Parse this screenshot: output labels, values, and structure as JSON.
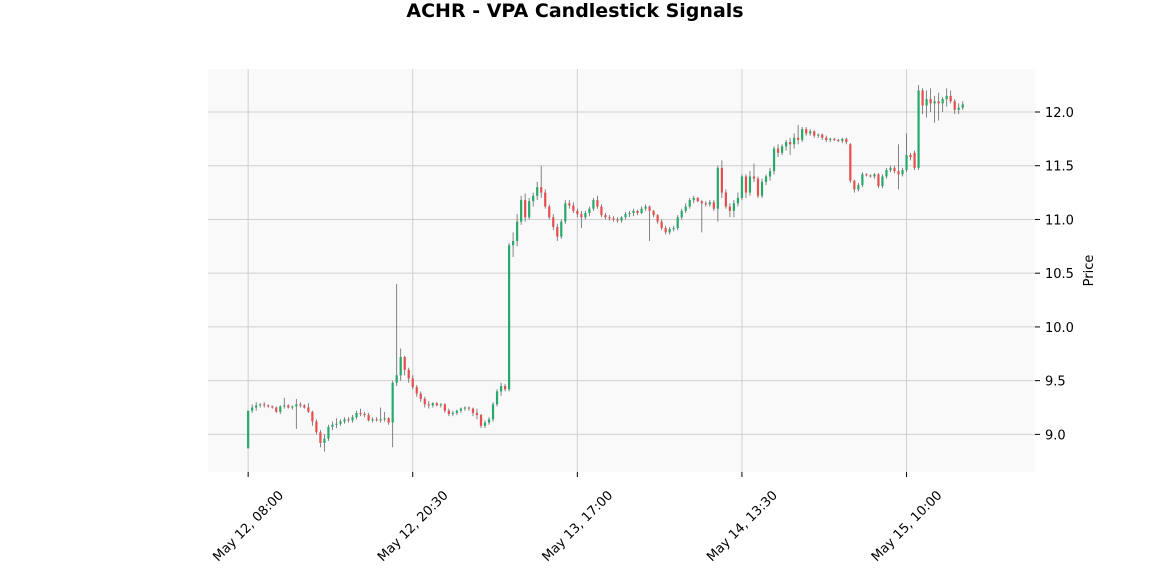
{
  "chart_data": {
    "type": "candlestick",
    "title": "ACHR - VPA Candlestick Signals",
    "ylabel": "Price",
    "xlabel": "",
    "ylim": [
      8.65,
      12.4
    ],
    "yticks": [
      9.0,
      9.5,
      10.0,
      10.5,
      11.0,
      11.5,
      12.0
    ],
    "ytick_labels": [
      "9.0",
      "9.5",
      "10.0",
      "10.5",
      "11.0",
      "11.5",
      "12.0"
    ],
    "xrange": [
      -10,
      196
    ],
    "xticks": [
      0,
      41,
      82,
      123,
      164
    ],
    "xtick_labels": [
      "May 12, 08:00",
      "May 12, 20:30",
      "May 13, 17:00",
      "May 14, 13:30",
      "May 15, 10:00"
    ],
    "grid": true,
    "colors": {
      "up": "#26a96c",
      "down": "#e84e4e",
      "wick": "#666666",
      "grid": "#d0d0d0",
      "plot_bg": "#f9f9f9"
    },
    "candles": [
      {
        "o": 8.87,
        "h": 9.22,
        "l": 8.87,
        "c": 9.22
      },
      {
        "o": 9.22,
        "h": 9.28,
        "l": 9.2,
        "c": 9.25
      },
      {
        "o": 9.25,
        "h": 9.3,
        "l": 9.22,
        "c": 9.27
      },
      {
        "o": 9.27,
        "h": 9.29,
        "l": 9.25,
        "c": 9.28
      },
      {
        "o": 9.28,
        "h": 9.3,
        "l": 9.25,
        "c": 9.27
      },
      {
        "o": 9.27,
        "h": 9.28,
        "l": 9.25,
        "c": 9.26
      },
      {
        "o": 9.26,
        "h": 9.27,
        "l": 9.24,
        "c": 9.25
      },
      {
        "o": 9.25,
        "h": 9.26,
        "l": 9.2,
        "c": 9.21
      },
      {
        "o": 9.21,
        "h": 9.27,
        "l": 9.19,
        "c": 9.26
      },
      {
        "o": 9.26,
        "h": 9.34,
        "l": 9.24,
        "c": 9.27
      },
      {
        "o": 9.27,
        "h": 9.28,
        "l": 9.24,
        "c": 9.25
      },
      {
        "o": 9.25,
        "h": 9.27,
        "l": 9.23,
        "c": 9.26
      },
      {
        "o": 9.26,
        "h": 9.33,
        "l": 9.05,
        "c": 9.28
      },
      {
        "o": 9.28,
        "h": 9.3,
        "l": 9.25,
        "c": 9.27
      },
      {
        "o": 9.27,
        "h": 9.28,
        "l": 9.24,
        "c": 9.25
      },
      {
        "o": 9.25,
        "h": 9.29,
        "l": 9.2,
        "c": 9.21
      },
      {
        "o": 9.21,
        "h": 9.22,
        "l": 9.08,
        "c": 9.12
      },
      {
        "o": 9.12,
        "h": 9.14,
        "l": 9.0,
        "c": 9.02
      },
      {
        "o": 9.02,
        "h": 9.04,
        "l": 8.88,
        "c": 8.92
      },
      {
        "o": 8.92,
        "h": 9.0,
        "l": 8.84,
        "c": 8.96
      },
      {
        "o": 8.96,
        "h": 9.09,
        "l": 8.94,
        "c": 9.07
      },
      {
        "o": 9.07,
        "h": 9.12,
        "l": 9.04,
        "c": 9.09
      },
      {
        "o": 9.09,
        "h": 9.15,
        "l": 9.06,
        "c": 9.1
      },
      {
        "o": 9.1,
        "h": 9.14,
        "l": 9.08,
        "c": 9.12
      },
      {
        "o": 9.12,
        "h": 9.16,
        "l": 9.1,
        "c": 9.14
      },
      {
        "o": 9.14,
        "h": 9.16,
        "l": 9.11,
        "c": 9.13
      },
      {
        "o": 9.13,
        "h": 9.18,
        "l": 9.11,
        "c": 9.16
      },
      {
        "o": 9.16,
        "h": 9.22,
        "l": 9.14,
        "c": 9.2
      },
      {
        "o": 9.2,
        "h": 9.24,
        "l": 9.17,
        "c": 9.19
      },
      {
        "o": 9.19,
        "h": 9.21,
        "l": 9.16,
        "c": 9.18
      },
      {
        "o": 9.18,
        "h": 9.2,
        "l": 9.12,
        "c": 9.13
      },
      {
        "o": 9.13,
        "h": 9.16,
        "l": 9.11,
        "c": 9.14
      },
      {
        "o": 9.14,
        "h": 9.16,
        "l": 9.12,
        "c": 9.13
      },
      {
        "o": 9.13,
        "h": 9.25,
        "l": 9.11,
        "c": 9.14
      },
      {
        "o": 9.14,
        "h": 9.21,
        "l": 9.12,
        "c": 9.15
      },
      {
        "o": 9.15,
        "h": 9.16,
        "l": 9.09,
        "c": 9.11
      },
      {
        "o": 9.11,
        "h": 9.5,
        "l": 8.88,
        "c": 9.48
      },
      {
        "o": 9.48,
        "h": 10.4,
        "l": 9.45,
        "c": 9.55
      },
      {
        "o": 9.55,
        "h": 9.8,
        "l": 9.5,
        "c": 9.72
      },
      {
        "o": 9.72,
        "h": 9.73,
        "l": 9.55,
        "c": 9.6
      },
      {
        "o": 9.6,
        "h": 9.62,
        "l": 9.48,
        "c": 9.52
      },
      {
        "o": 9.52,
        "h": 9.55,
        "l": 9.42,
        "c": 9.44
      },
      {
        "o": 9.44,
        "h": 9.46,
        "l": 9.35,
        "c": 9.38
      },
      {
        "o": 9.38,
        "h": 9.4,
        "l": 9.3,
        "c": 9.33
      },
      {
        "o": 9.33,
        "h": 9.35,
        "l": 9.25,
        "c": 9.28
      },
      {
        "o": 9.28,
        "h": 9.31,
        "l": 9.24,
        "c": 9.27
      },
      {
        "o": 9.27,
        "h": 9.3,
        "l": 9.25,
        "c": 9.29
      },
      {
        "o": 9.29,
        "h": 9.3,
        "l": 9.26,
        "c": 9.27
      },
      {
        "o": 9.27,
        "h": 9.29,
        "l": 9.25,
        "c": 9.28
      },
      {
        "o": 9.28,
        "h": 9.29,
        "l": 9.2,
        "c": 9.22
      },
      {
        "o": 9.22,
        "h": 9.24,
        "l": 9.17,
        "c": 9.19
      },
      {
        "o": 9.19,
        "h": 9.22,
        "l": 9.17,
        "c": 9.2
      },
      {
        "o": 9.2,
        "h": 9.23,
        "l": 9.18,
        "c": 9.22
      },
      {
        "o": 9.22,
        "h": 9.25,
        "l": 9.2,
        "c": 9.24
      },
      {
        "o": 9.24,
        "h": 9.26,
        "l": 9.22,
        "c": 9.25
      },
      {
        "o": 9.25,
        "h": 9.26,
        "l": 9.22,
        "c": 9.24
      },
      {
        "o": 9.24,
        "h": 9.25,
        "l": 9.17,
        "c": 9.2
      },
      {
        "o": 9.2,
        "h": 9.24,
        "l": 9.14,
        "c": 9.18
      },
      {
        "o": 9.18,
        "h": 9.19,
        "l": 9.06,
        "c": 9.08
      },
      {
        "o": 9.08,
        "h": 9.13,
        "l": 9.06,
        "c": 9.11
      },
      {
        "o": 9.11,
        "h": 9.16,
        "l": 9.09,
        "c": 9.14
      },
      {
        "o": 9.14,
        "h": 9.3,
        "l": 9.12,
        "c": 9.28
      },
      {
        "o": 9.28,
        "h": 9.42,
        "l": 9.26,
        "c": 9.4
      },
      {
        "o": 9.4,
        "h": 9.48,
        "l": 9.36,
        "c": 9.45
      },
      {
        "o": 9.45,
        "h": 9.47,
        "l": 9.4,
        "c": 9.42
      },
      {
        "o": 9.42,
        "h": 10.78,
        "l": 9.4,
        "c": 10.76
      },
      {
        "o": 10.76,
        "h": 10.88,
        "l": 10.65,
        "c": 10.8
      },
      {
        "o": 10.8,
        "h": 11.05,
        "l": 10.75,
        "c": 10.98
      },
      {
        "o": 10.98,
        "h": 11.22,
        "l": 10.95,
        "c": 11.18
      },
      {
        "o": 11.18,
        "h": 11.24,
        "l": 10.98,
        "c": 11.02
      },
      {
        "o": 11.02,
        "h": 11.2,
        "l": 11.0,
        "c": 11.17
      },
      {
        "o": 11.17,
        "h": 11.25,
        "l": 11.12,
        "c": 11.22
      },
      {
        "o": 11.22,
        "h": 11.35,
        "l": 11.18,
        "c": 11.3
      },
      {
        "o": 11.3,
        "h": 11.5,
        "l": 11.2,
        "c": 11.25
      },
      {
        "o": 11.25,
        "h": 11.28,
        "l": 11.1,
        "c": 11.12
      },
      {
        "o": 11.12,
        "h": 11.14,
        "l": 11.0,
        "c": 11.02
      },
      {
        "o": 11.02,
        "h": 11.05,
        "l": 10.9,
        "c": 10.93
      },
      {
        "o": 10.93,
        "h": 10.96,
        "l": 10.8,
        "c": 10.84
      },
      {
        "o": 10.84,
        "h": 11.0,
        "l": 10.82,
        "c": 10.98
      },
      {
        "o": 10.98,
        "h": 11.18,
        "l": 10.96,
        "c": 11.15
      },
      {
        "o": 11.15,
        "h": 11.18,
        "l": 11.1,
        "c": 11.13
      },
      {
        "o": 11.13,
        "h": 11.16,
        "l": 11.06,
        "c": 11.08
      },
      {
        "o": 11.08,
        "h": 11.1,
        "l": 11.02,
        "c": 11.05
      },
      {
        "o": 11.05,
        "h": 11.08,
        "l": 10.92,
        "c": 11.02
      },
      {
        "o": 11.02,
        "h": 11.08,
        "l": 11.0,
        "c": 11.06
      },
      {
        "o": 11.06,
        "h": 11.12,
        "l": 11.03,
        "c": 11.1
      },
      {
        "o": 11.1,
        "h": 11.2,
        "l": 11.08,
        "c": 11.18
      },
      {
        "o": 11.18,
        "h": 11.22,
        "l": 11.1,
        "c": 11.12
      },
      {
        "o": 11.12,
        "h": 11.14,
        "l": 11.02,
        "c": 11.04
      },
      {
        "o": 11.04,
        "h": 11.06,
        "l": 11.0,
        "c": 11.02
      },
      {
        "o": 11.02,
        "h": 11.04,
        "l": 10.99,
        "c": 11.01
      },
      {
        "o": 11.01,
        "h": 11.03,
        "l": 10.98,
        "c": 11.0
      },
      {
        "o": 11.0,
        "h": 11.02,
        "l": 10.97,
        "c": 10.99
      },
      {
        "o": 10.99,
        "h": 11.03,
        "l": 10.97,
        "c": 11.02
      },
      {
        "o": 11.02,
        "h": 11.07,
        "l": 11.0,
        "c": 11.05
      },
      {
        "o": 11.05,
        "h": 11.08,
        "l": 11.02,
        "c": 11.06
      },
      {
        "o": 11.06,
        "h": 11.1,
        "l": 11.03,
        "c": 11.08
      },
      {
        "o": 11.08,
        "h": 11.09,
        "l": 11.04,
        "c": 11.06
      },
      {
        "o": 11.06,
        "h": 11.12,
        "l": 11.05,
        "c": 11.1
      },
      {
        "o": 11.1,
        "h": 11.14,
        "l": 11.08,
        "c": 11.12
      },
      {
        "o": 11.12,
        "h": 11.13,
        "l": 10.8,
        "c": 11.08
      },
      {
        "o": 11.08,
        "h": 11.09,
        "l": 11.02,
        "c": 11.04
      },
      {
        "o": 11.04,
        "h": 11.05,
        "l": 10.96,
        "c": 10.98
      },
      {
        "o": 10.98,
        "h": 11.0,
        "l": 10.9,
        "c": 10.92
      },
      {
        "o": 10.92,
        "h": 10.94,
        "l": 10.86,
        "c": 10.88
      },
      {
        "o": 10.88,
        "h": 10.93,
        "l": 10.86,
        "c": 10.91
      },
      {
        "o": 10.91,
        "h": 10.94,
        "l": 10.89,
        "c": 10.92
      },
      {
        "o": 10.92,
        "h": 11.04,
        "l": 10.9,
        "c": 11.02
      },
      {
        "o": 11.02,
        "h": 11.1,
        "l": 11.0,
        "c": 11.08
      },
      {
        "o": 11.08,
        "h": 11.15,
        "l": 11.06,
        "c": 11.12
      },
      {
        "o": 11.12,
        "h": 11.2,
        "l": 11.1,
        "c": 11.18
      },
      {
        "o": 11.18,
        "h": 11.22,
        "l": 11.15,
        "c": 11.2
      },
      {
        "o": 11.2,
        "h": 11.21,
        "l": 11.16,
        "c": 11.17
      },
      {
        "o": 11.17,
        "h": 11.18,
        "l": 10.88,
        "c": 11.15
      },
      {
        "o": 11.15,
        "h": 11.17,
        "l": 11.12,
        "c": 11.14
      },
      {
        "o": 11.14,
        "h": 11.18,
        "l": 11.12,
        "c": 11.16
      },
      {
        "o": 11.16,
        "h": 11.18,
        "l": 11.08,
        "c": 11.1
      },
      {
        "o": 11.1,
        "h": 11.5,
        "l": 10.98,
        "c": 11.48
      },
      {
        "o": 11.48,
        "h": 11.55,
        "l": 11.2,
        "c": 11.25
      },
      {
        "o": 11.25,
        "h": 11.28,
        "l": 11.1,
        "c": 11.12
      },
      {
        "o": 11.12,
        "h": 11.15,
        "l": 11.02,
        "c": 11.08
      },
      {
        "o": 11.08,
        "h": 11.18,
        "l": 11.02,
        "c": 11.15
      },
      {
        "o": 11.15,
        "h": 11.25,
        "l": 11.12,
        "c": 11.2
      },
      {
        "o": 11.2,
        "h": 11.42,
        "l": 11.18,
        "c": 11.4
      },
      {
        "o": 11.4,
        "h": 11.42,
        "l": 11.2,
        "c": 11.25
      },
      {
        "o": 11.25,
        "h": 11.45,
        "l": 11.22,
        "c": 11.4
      },
      {
        "o": 11.4,
        "h": 11.52,
        "l": 11.35,
        "c": 11.38
      },
      {
        "o": 11.38,
        "h": 11.4,
        "l": 11.2,
        "c": 11.22
      },
      {
        "o": 11.22,
        "h": 11.38,
        "l": 11.2,
        "c": 11.35
      },
      {
        "o": 11.35,
        "h": 11.42,
        "l": 11.32,
        "c": 11.4
      },
      {
        "o": 11.4,
        "h": 11.48,
        "l": 11.36,
        "c": 11.45
      },
      {
        "o": 11.45,
        "h": 11.68,
        "l": 11.42,
        "c": 11.66
      },
      {
        "o": 11.66,
        "h": 11.7,
        "l": 11.58,
        "c": 11.62
      },
      {
        "o": 11.62,
        "h": 11.7,
        "l": 11.6,
        "c": 11.68
      },
      {
        "o": 11.68,
        "h": 11.74,
        "l": 11.64,
        "c": 11.72
      },
      {
        "o": 11.72,
        "h": 11.76,
        "l": 11.6,
        "c": 11.7
      },
      {
        "o": 11.7,
        "h": 11.8,
        "l": 11.66,
        "c": 11.76
      },
      {
        "o": 11.76,
        "h": 11.88,
        "l": 11.7,
        "c": 11.74
      },
      {
        "o": 11.74,
        "h": 11.86,
        "l": 11.72,
        "c": 11.84
      },
      {
        "o": 11.84,
        "h": 11.86,
        "l": 11.78,
        "c": 11.8
      },
      {
        "o": 11.8,
        "h": 11.84,
        "l": 11.78,
        "c": 11.82
      },
      {
        "o": 11.82,
        "h": 11.83,
        "l": 11.76,
        "c": 11.78
      },
      {
        "o": 11.78,
        "h": 11.8,
        "l": 11.76,
        "c": 11.79
      },
      {
        "o": 11.79,
        "h": 11.8,
        "l": 11.74,
        "c": 11.76
      },
      {
        "o": 11.76,
        "h": 11.78,
        "l": 11.72,
        "c": 11.74
      },
      {
        "o": 11.74,
        "h": 11.76,
        "l": 11.72,
        "c": 11.75
      },
      {
        "o": 11.75,
        "h": 11.76,
        "l": 11.73,
        "c": 11.74
      },
      {
        "o": 11.74,
        "h": 11.75,
        "l": 11.72,
        "c": 11.73
      },
      {
        "o": 11.73,
        "h": 11.76,
        "l": 11.71,
        "c": 11.75
      },
      {
        "o": 11.75,
        "h": 11.76,
        "l": 11.7,
        "c": 11.72
      },
      {
        "o": 11.7,
        "h": 11.71,
        "l": 11.34,
        "c": 11.36
      },
      {
        "o": 11.36,
        "h": 11.37,
        "l": 11.25,
        "c": 11.28
      },
      {
        "o": 11.28,
        "h": 11.34,
        "l": 11.26,
        "c": 11.32
      },
      {
        "o": 11.32,
        "h": 11.44,
        "l": 11.3,
        "c": 11.42
      },
      {
        "o": 11.42,
        "h": 11.43,
        "l": 11.4,
        "c": 11.41
      },
      {
        "o": 11.41,
        "h": 11.42,
        "l": 11.39,
        "c": 11.4
      },
      {
        "o": 11.4,
        "h": 11.43,
        "l": 11.38,
        "c": 11.42
      },
      {
        "o": 11.42,
        "h": 11.43,
        "l": 11.29,
        "c": 11.31
      },
      {
        "o": 11.31,
        "h": 11.42,
        "l": 11.29,
        "c": 11.4
      },
      {
        "o": 11.4,
        "h": 11.48,
        "l": 11.38,
        "c": 11.46
      },
      {
        "o": 11.46,
        "h": 11.5,
        "l": 11.44,
        "c": 11.48
      },
      {
        "o": 11.48,
        "h": 11.5,
        "l": 11.43,
        "c": 11.45
      },
      {
        "o": 11.45,
        "h": 11.7,
        "l": 11.28,
        "c": 11.42
      },
      {
        "o": 11.42,
        "h": 11.48,
        "l": 11.4,
        "c": 11.46
      },
      {
        "o": 11.46,
        "h": 11.8,
        "l": 11.44,
        "c": 11.6
      },
      {
        "o": 11.6,
        "h": 11.62,
        "l": 11.55,
        "c": 11.58
      },
      {
        "o": 11.62,
        "h": 11.64,
        "l": 11.46,
        "c": 11.48
      },
      {
        "o": 11.48,
        "h": 12.25,
        "l": 11.46,
        "c": 12.2
      },
      {
        "o": 12.2,
        "h": 12.22,
        "l": 11.98,
        "c": 12.06
      },
      {
        "o": 12.06,
        "h": 12.2,
        "l": 11.95,
        "c": 12.12
      },
      {
        "o": 12.12,
        "h": 12.22,
        "l": 12.0,
        "c": 12.08
      },
      {
        "o": 12.08,
        "h": 12.15,
        "l": 11.9,
        "c": 12.1
      },
      {
        "o": 12.1,
        "h": 12.18,
        "l": 11.92,
        "c": 12.08
      },
      {
        "o": 12.08,
        "h": 12.14,
        "l": 12.0,
        "c": 12.12
      },
      {
        "o": 12.12,
        "h": 12.22,
        "l": 12.05,
        "c": 12.15
      },
      {
        "o": 12.15,
        "h": 12.2,
        "l": 12.08,
        "c": 12.1
      },
      {
        "o": 12.1,
        "h": 12.12,
        "l": 11.98,
        "c": 12.02
      },
      {
        "o": 12.02,
        "h": 12.08,
        "l": 11.98,
        "c": 12.04
      },
      {
        "o": 12.04,
        "h": 12.1,
        "l": 12.02,
        "c": 12.07
      }
    ]
  }
}
